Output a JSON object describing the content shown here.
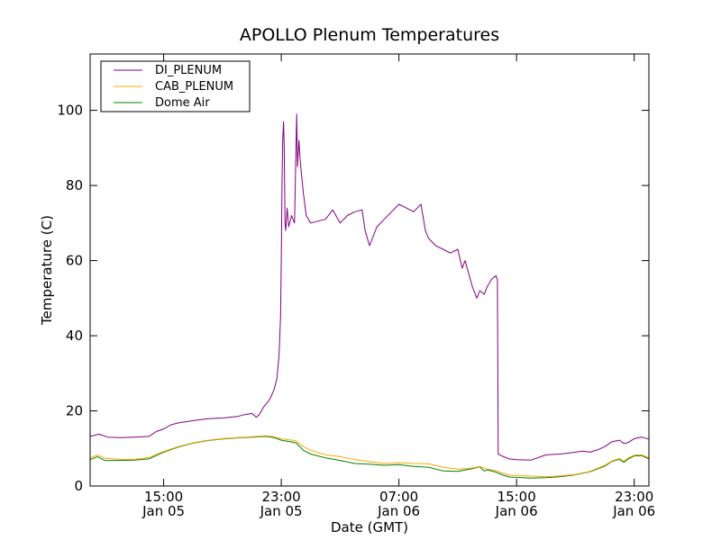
{
  "chart_data": {
    "type": "line",
    "title": "APOLLO Plenum Temperatures",
    "xlabel": "Date (GMT)",
    "ylabel": "Temperature (C)",
    "x_unit": "hours since Jan 05 10:00 GMT",
    "xlim": [
      0,
      38
    ],
    "ylim": [
      0,
      115
    ],
    "y_ticks": [
      0,
      20,
      40,
      60,
      80,
      100
    ],
    "x_ticks": [
      {
        "x": 5,
        "line1": "15:00",
        "line2": "Jan 05"
      },
      {
        "x": 13,
        "line1": "23:00",
        "line2": "Jan 05"
      },
      {
        "x": 21,
        "line1": "07:00",
        "line2": "Jan 06"
      },
      {
        "x": 29,
        "line1": "15:00",
        "line2": "Jan 06"
      },
      {
        "x": 37,
        "line1": "23:00",
        "line2": "Jan 06"
      }
    ],
    "legend_position": "top-left",
    "series": [
      {
        "name": "DI_PLENUM",
        "color": "#800080",
        "points": [
          [
            0,
            13.2
          ],
          [
            0.6,
            13.8
          ],
          [
            1.2,
            13.0
          ],
          [
            2,
            12.9
          ],
          [
            3,
            13.0
          ],
          [
            4,
            13.2
          ],
          [
            4.5,
            14.5
          ],
          [
            5,
            15.2
          ],
          [
            5.5,
            16.3
          ],
          [
            6,
            16.8
          ],
          [
            7,
            17.4
          ],
          [
            8,
            17.9
          ],
          [
            9,
            18.1
          ],
          [
            10,
            18.5
          ],
          [
            10.5,
            19.0
          ],
          [
            11,
            19.3
          ],
          [
            11.3,
            18.3
          ],
          [
            11.5,
            19.0
          ],
          [
            11.8,
            21.0
          ],
          [
            12.2,
            23.0
          ],
          [
            12.5,
            25.5
          ],
          [
            12.7,
            28.5
          ],
          [
            12.85,
            35.0
          ],
          [
            12.95,
            45.0
          ],
          [
            13.0,
            60.0
          ],
          [
            13.05,
            80.0
          ],
          [
            13.1,
            92.0
          ],
          [
            13.15,
            97.0
          ],
          [
            13.2,
            90.0
          ],
          [
            13.25,
            70.0
          ],
          [
            13.3,
            68.0
          ],
          [
            13.4,
            74.0
          ],
          [
            13.5,
            69.0
          ],
          [
            13.7,
            72.0
          ],
          [
            13.9,
            70.0
          ],
          [
            14.0,
            90.0
          ],
          [
            14.05,
            99.0
          ],
          [
            14.1,
            85.0
          ],
          [
            14.2,
            92.0
          ],
          [
            14.3,
            86.0
          ],
          [
            14.4,
            82.0
          ],
          [
            14.5,
            78.0
          ],
          [
            14.7,
            72.0
          ],
          [
            15.0,
            70.0
          ],
          [
            15.5,
            70.5
          ],
          [
            16,
            71.0
          ],
          [
            16.5,
            73.5
          ],
          [
            17,
            70.0
          ],
          [
            17.5,
            72.0
          ],
          [
            18,
            73.0
          ],
          [
            18.5,
            73.5
          ],
          [
            18.7,
            68.0
          ],
          [
            19,
            64.0
          ],
          [
            19.2,
            66.0
          ],
          [
            19.5,
            69.0
          ],
          [
            20,
            71.0
          ],
          [
            20.5,
            73.0
          ],
          [
            21,
            75.0
          ],
          [
            21.5,
            74.0
          ],
          [
            22,
            73.0
          ],
          [
            22.5,
            75.0
          ],
          [
            22.8,
            68.0
          ],
          [
            23,
            66.0
          ],
          [
            23.5,
            64.0
          ],
          [
            24,
            63.0
          ],
          [
            24.5,
            62.0
          ],
          [
            25,
            63.0
          ],
          [
            25.3,
            58.0
          ],
          [
            25.5,
            60.0
          ],
          [
            26,
            53.0
          ],
          [
            26.3,
            50.0
          ],
          [
            26.5,
            52.0
          ],
          [
            26.8,
            51.0
          ],
          [
            27,
            53.0
          ],
          [
            27.3,
            55.0
          ],
          [
            27.6,
            56.0
          ],
          [
            27.7,
            55.0
          ],
          [
            27.75,
            8.5
          ],
          [
            28,
            8.0
          ],
          [
            28.5,
            7.2
          ],
          [
            29,
            7.0
          ],
          [
            30,
            6.9
          ],
          [
            31,
            8.3
          ],
          [
            32,
            8.5
          ],
          [
            33,
            9.0
          ],
          [
            33.5,
            9.3
          ],
          [
            34,
            9.0
          ],
          [
            34.5,
            9.6
          ],
          [
            35,
            10.5
          ],
          [
            35.5,
            11.8
          ],
          [
            36,
            12.2
          ],
          [
            36.3,
            11.3
          ],
          [
            36.6,
            11.6
          ],
          [
            37,
            12.6
          ],
          [
            37.5,
            13.0
          ],
          [
            38,
            12.5
          ]
        ]
      },
      {
        "name": "CAB_PLENUM",
        "color": "#ffa500",
        "points": [
          [
            0,
            7.5
          ],
          [
            0.5,
            8.3
          ],
          [
            1,
            7.4
          ],
          [
            2,
            7.1
          ],
          [
            3,
            7.1
          ],
          [
            4,
            7.6
          ],
          [
            5,
            9.2
          ],
          [
            6,
            10.5
          ],
          [
            7,
            11.5
          ],
          [
            8,
            12.2
          ],
          [
            9,
            12.6
          ],
          [
            10,
            12.9
          ],
          [
            11,
            13.1
          ],
          [
            12,
            13.4
          ],
          [
            12.5,
            13.1
          ],
          [
            13,
            12.6
          ],
          [
            14,
            12.0
          ],
          [
            14.5,
            10.5
          ],
          [
            15,
            9.5
          ],
          [
            16,
            8.3
          ],
          [
            17,
            7.8
          ],
          [
            18,
            7.0
          ],
          [
            19,
            6.5
          ],
          [
            20,
            6.0
          ],
          [
            21,
            6.2
          ],
          [
            22,
            6.0
          ],
          [
            23,
            5.9
          ],
          [
            24,
            5.0
          ],
          [
            25,
            4.5
          ],
          [
            26,
            4.8
          ],
          [
            26.5,
            5.2
          ],
          [
            27,
            4.5
          ],
          [
            27.5,
            4.2
          ],
          [
            28,
            3.5
          ],
          [
            28.5,
            2.9
          ],
          [
            29,
            2.8
          ],
          [
            30,
            2.6
          ],
          [
            31,
            2.5
          ],
          [
            32,
            2.7
          ],
          [
            33,
            3.1
          ],
          [
            34,
            3.9
          ],
          [
            35,
            5.5
          ],
          [
            35.5,
            6.7
          ],
          [
            36,
            7.3
          ],
          [
            36.3,
            6.6
          ],
          [
            36.6,
            7.5
          ],
          [
            37,
            8.2
          ],
          [
            37.5,
            8.3
          ],
          [
            38,
            7.5
          ]
        ]
      },
      {
        "name": "Dome Air",
        "color": "#008000",
        "points": [
          [
            0,
            7.0
          ],
          [
            0.5,
            7.8
          ],
          [
            1,
            6.8
          ],
          [
            2,
            6.8
          ],
          [
            3,
            6.9
          ],
          [
            4,
            7.2
          ],
          [
            5,
            9.0
          ],
          [
            6,
            10.4
          ],
          [
            7,
            11.4
          ],
          [
            8,
            12.1
          ],
          [
            9,
            12.5
          ],
          [
            10,
            12.8
          ],
          [
            11,
            13.0
          ],
          [
            12,
            13.2
          ],
          [
            12.5,
            12.9
          ],
          [
            13,
            12.2
          ],
          [
            14,
            11.5
          ],
          [
            14.5,
            9.5
          ],
          [
            15,
            8.5
          ],
          [
            16,
            7.5
          ],
          [
            17,
            6.8
          ],
          [
            18,
            6.0
          ],
          [
            19,
            5.8
          ],
          [
            20,
            5.5
          ],
          [
            21,
            5.7
          ],
          [
            22,
            5.2
          ],
          [
            23,
            5.0
          ],
          [
            24,
            4.0
          ],
          [
            25,
            3.9
          ],
          [
            26,
            4.6
          ],
          [
            26.5,
            5.1
          ],
          [
            26.8,
            4.0
          ],
          [
            27,
            4.3
          ],
          [
            27.5,
            3.8
          ],
          [
            28,
            3.0
          ],
          [
            28.5,
            2.4
          ],
          [
            29,
            2.3
          ],
          [
            30,
            2.1
          ],
          [
            31,
            2.2
          ],
          [
            32,
            2.5
          ],
          [
            33,
            3.0
          ],
          [
            34,
            3.8
          ],
          [
            35,
            5.3
          ],
          [
            35.5,
            6.6
          ],
          [
            36,
            7.1
          ],
          [
            36.3,
            6.3
          ],
          [
            36.6,
            7.2
          ],
          [
            37,
            8.0
          ],
          [
            37.5,
            8.1
          ],
          [
            38,
            7.2
          ]
        ]
      }
    ]
  }
}
